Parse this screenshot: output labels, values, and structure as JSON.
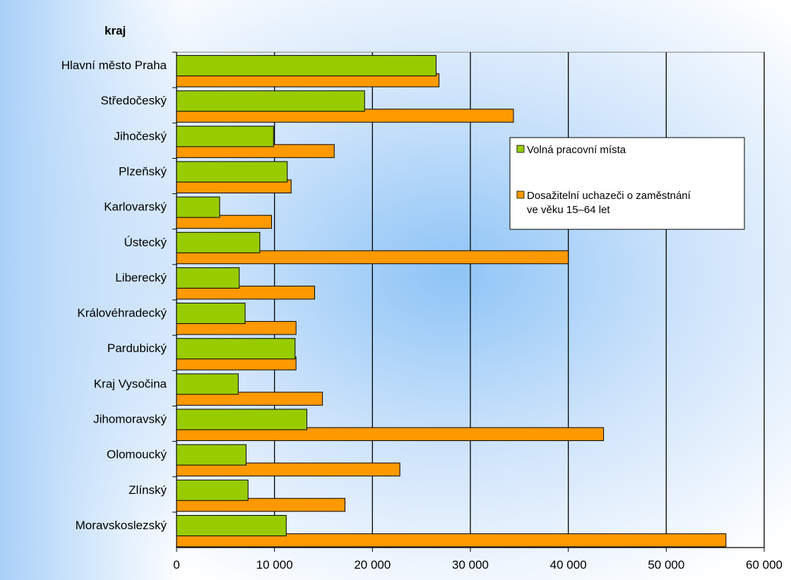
{
  "chart_data": {
    "type": "bar",
    "orientation": "horizontal",
    "axis_title": "kraj",
    "categories": [
      "Hlavní město Praha",
      "Středočeský",
      "Jihočeský",
      "Plzeňský",
      "Karlovarský",
      "Ústecký",
      "Liberecký",
      "Královéhradecký",
      "Pardubický",
      "Kraj Vysočina",
      "Jihomoravský",
      "Olomoucký",
      "Zlínský",
      "Moravskoslezský"
    ],
    "series": [
      {
        "name": "Volná pracovní místa",
        "color": "#99cc00",
        "values": [
          26500,
          19200,
          9900,
          11300,
          4400,
          8500,
          6400,
          7000,
          12100,
          6300,
          13300,
          7100,
          7300,
          11200
        ]
      },
      {
        "name": "Dosažitelní uchazeči o zaměstnání ve věku 15–64 let",
        "color": "#ff9900",
        "values": [
          26800,
          34400,
          16100,
          11700,
          9700,
          40000,
          14100,
          12200,
          12200,
          14900,
          43600,
          22800,
          17200,
          56100
        ]
      }
    ],
    "xlim": [
      0,
      60000
    ],
    "xticks": [
      0,
      10000,
      20000,
      30000,
      40000,
      50000,
      60000
    ],
    "xtick_labels": [
      "0",
      "10 000",
      "20 000",
      "30 000",
      "40 000",
      "50 000",
      "60 000"
    ],
    "legend": {
      "position": "right",
      "items": [
        {
          "lines": [
            "Volná pracovní místa"
          ],
          "color": "#99cc00"
        },
        {
          "lines": [
            "Dosažitelní uchazeči o zaměstnání",
            "ve věku 15–64 let"
          ],
          "color": "#ff9900"
        }
      ]
    },
    "grid": true
  }
}
